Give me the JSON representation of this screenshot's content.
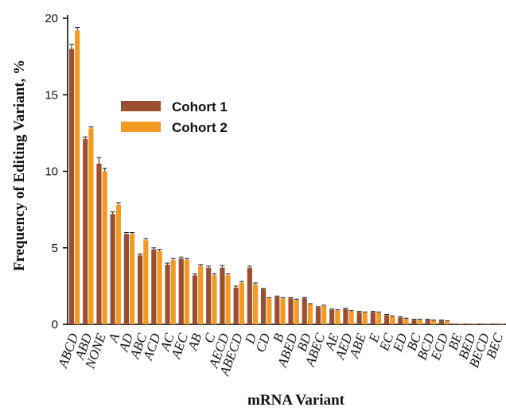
{
  "chart_data": {
    "type": "bar",
    "xlabel": "mRNA Variant",
    "ylabel": "Frequency of Editing Variant, %",
    "ylim": [
      0,
      20
    ],
    "yticks": [
      0,
      5,
      10,
      15,
      20
    ],
    "grid": false,
    "legend_position": "upper-center",
    "categories": [
      "ABCD",
      "ABD",
      "NONE",
      "A",
      "AD",
      "ABC",
      "ACD",
      "AC",
      "AEC",
      "AB",
      "C",
      "AECD",
      "ABECD",
      "D",
      "CD",
      "B",
      "ABED",
      "BD",
      "ABEC",
      "AE",
      "AED",
      "ABE",
      "E",
      "EC",
      "ED",
      "BC",
      "BCD",
      "ECD",
      "BE",
      "BED",
      "BECD",
      "BEC"
    ],
    "series": [
      {
        "name": "Cohort 1",
        "color": "#9b4f32",
        "values": [
          18.0,
          12.1,
          10.5,
          7.2,
          5.9,
          4.5,
          4.9,
          3.9,
          4.3,
          3.2,
          3.7,
          3.7,
          2.4,
          3.7,
          2.3,
          1.8,
          1.7,
          1.7,
          1.1,
          0.95,
          1.0,
          0.8,
          0.8,
          0.6,
          0.45,
          0.3,
          0.3,
          0.25,
          0.04,
          0.04,
          0.02,
          0.02
        ],
        "errors": [
          0.3,
          0.15,
          0.4,
          0.15,
          0.1,
          0.1,
          0.1,
          0.1,
          0.1,
          0.1,
          0.1,
          0.15,
          0.1,
          0.1,
          0.05,
          0.05,
          0.05,
          0.05,
          0.05,
          0.05,
          0.05,
          0.05,
          0.05,
          0.05,
          0.05,
          0.03,
          0.03,
          0.03,
          0.01,
          0.01,
          0.01,
          0.01
        ]
      },
      {
        "name": "Cohort 2",
        "color": "#f39a24",
        "values": [
          19.2,
          12.8,
          10.0,
          7.8,
          5.9,
          5.5,
          4.8,
          4.2,
          4.2,
          3.8,
          3.2,
          3.2,
          2.7,
          2.6,
          1.7,
          1.7,
          1.6,
          1.3,
          1.2,
          0.9,
          0.85,
          0.75,
          0.75,
          0.5,
          0.35,
          0.3,
          0.25,
          0.2,
          0.03,
          0.03,
          0.02,
          0.02
        ],
        "errors": [
          0.2,
          0.1,
          0.2,
          0.15,
          0.1,
          0.1,
          0.1,
          0.1,
          0.1,
          0.1,
          0.1,
          0.1,
          0.1,
          0.1,
          0.05,
          0.05,
          0.05,
          0.05,
          0.05,
          0.05,
          0.05,
          0.05,
          0.05,
          0.05,
          0.05,
          0.03,
          0.03,
          0.03,
          0.01,
          0.01,
          0.01,
          0.01
        ]
      }
    ]
  }
}
